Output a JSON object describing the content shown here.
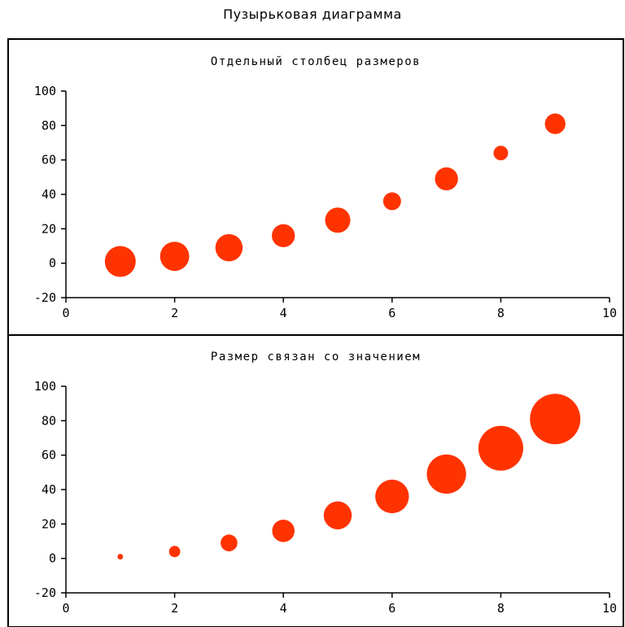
{
  "title": "Пузырьковая диаграмма",
  "colors": {
    "bubble": "#ff3300",
    "frame": "#000000"
  },
  "chart_data": [
    {
      "type": "scatter",
      "title": "Отдельный столбец размеров",
      "xlim": [
        0,
        10
      ],
      "ylim": [
        -20,
        100
      ],
      "x_ticks": [
        "0",
        "2",
        "4",
        "6",
        "8",
        "10"
      ],
      "y_ticks": [
        "-20",
        "0",
        "20",
        "40",
        "60",
        "80",
        "100"
      ],
      "x": [
        1,
        2,
        3,
        4,
        5,
        6,
        7,
        8,
        9
      ],
      "y": [
        1,
        4,
        9,
        16,
        25,
        36,
        49,
        64,
        81
      ],
      "sizes": [
        9,
        8,
        7,
        5,
        6,
        3,
        5,
        2,
        4
      ]
    },
    {
      "type": "scatter",
      "title": "Размер связан со значением",
      "xlim": [
        0,
        10
      ],
      "ylim": [
        -20,
        100
      ],
      "x_ticks": [
        "0",
        "2",
        "4",
        "6",
        "8",
        "10"
      ],
      "y_ticks": [
        "-20",
        "0",
        "20",
        "40",
        "60",
        "80",
        "100"
      ],
      "x": [
        1,
        2,
        3,
        4,
        5,
        6,
        7,
        8,
        9
      ],
      "y": [
        1,
        4,
        9,
        16,
        25,
        36,
        49,
        64,
        81
      ],
      "sizes": [
        1,
        4,
        9,
        16,
        25,
        36,
        49,
        64,
        81
      ]
    }
  ]
}
